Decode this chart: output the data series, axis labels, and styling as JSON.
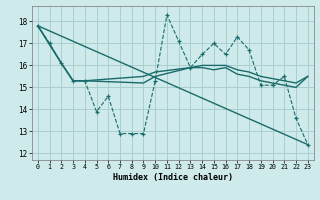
{
  "title": "",
  "xlabel": "Humidex (Indice chaleur)",
  "xlim": [
    -0.5,
    23.5
  ],
  "ylim": [
    11.7,
    18.7
  ],
  "yticks": [
    12,
    13,
    14,
    15,
    16,
    17,
    18
  ],
  "xticks": [
    0,
    1,
    2,
    3,
    4,
    5,
    6,
    7,
    8,
    9,
    10,
    11,
    12,
    13,
    14,
    15,
    16,
    17,
    18,
    19,
    20,
    21,
    22,
    23
  ],
  "background_color": "#ceeaea",
  "grid_color": "#aacece",
  "line_color": "#1a6b6b",
  "series0_x": [
    0,
    1,
    2,
    3,
    4,
    5,
    6,
    7,
    8,
    9,
    10,
    11,
    12,
    13,
    14,
    15,
    16,
    17,
    18,
    19,
    20,
    21,
    22,
    23
  ],
  "series0_y": [
    17.8,
    17.0,
    16.1,
    15.3,
    15.3,
    13.9,
    14.6,
    12.9,
    12.9,
    12.9,
    15.3,
    18.3,
    17.1,
    15.9,
    16.5,
    17.0,
    16.5,
    17.3,
    16.7,
    15.1,
    15.1,
    15.5,
    13.6,
    12.4
  ],
  "series1_x": [
    0,
    2,
    3,
    4,
    9,
    10,
    13,
    14,
    15,
    16,
    17,
    18,
    19,
    20,
    22,
    23
  ],
  "series1_y": [
    17.8,
    16.1,
    15.3,
    15.3,
    15.2,
    15.5,
    15.9,
    15.9,
    15.8,
    15.9,
    15.6,
    15.5,
    15.3,
    15.2,
    15.0,
    15.5
  ],
  "series2_x": [
    0,
    2,
    3,
    4,
    9,
    10,
    13,
    14,
    15,
    16,
    17,
    18,
    19,
    20,
    22,
    23
  ],
  "series2_y": [
    17.8,
    16.1,
    15.3,
    15.3,
    15.5,
    15.7,
    15.9,
    16.0,
    16.0,
    16.0,
    15.8,
    15.7,
    15.5,
    15.4,
    15.2,
    15.5
  ],
  "series3_x": [
    0,
    23
  ],
  "series3_y": [
    17.8,
    12.4
  ]
}
